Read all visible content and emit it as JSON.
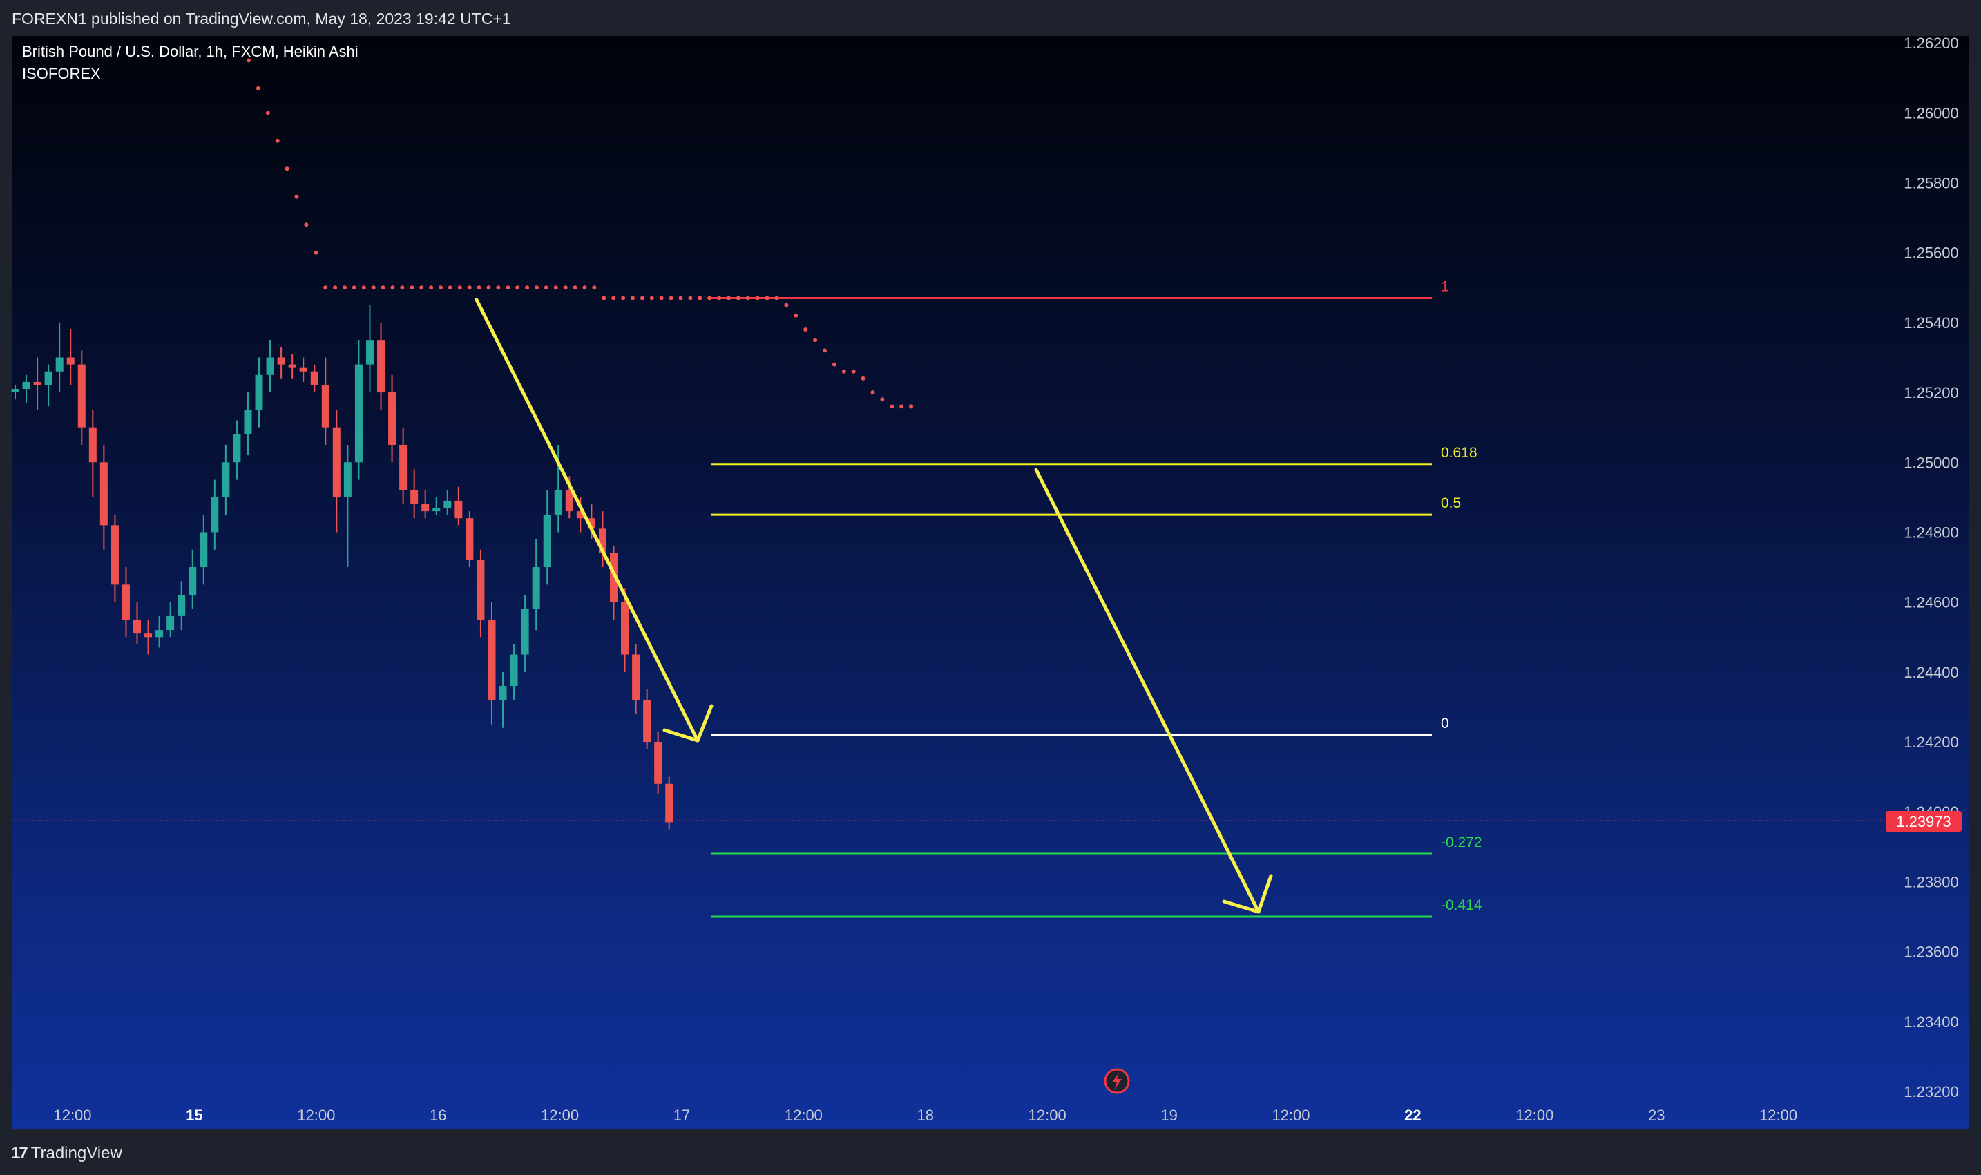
{
  "header": {
    "published": "FOREXN1 published on TradingView.com, May 18, 2023 19:42 UTC+1"
  },
  "chart": {
    "symbol_title": "British Pound / U.S. Dollar, 1h, FXCM, Heikin Ashi",
    "indicator": "ISOFOREX",
    "current_price": "1.23973",
    "colors": {
      "bull": "#26a69a",
      "bear": "#ef5350",
      "fib_red": "#f23645",
      "fib_yellow": "#f2f21f",
      "fib_white": "#ffffff",
      "fib_green": "#26d94a",
      "arrow": "#f7f04a",
      "price_tag": "#f23645"
    }
  },
  "footer": {
    "logo_text": "TradingView",
    "logo_mark": "17"
  },
  "chart_data": {
    "type": "candlestick",
    "ylim": [
      1.232,
      1.2622
    ],
    "y_ticks": [
      "1.26200",
      "1.26000",
      "1.25800",
      "1.25600",
      "1.25400",
      "1.25200",
      "1.25000",
      "1.24800",
      "1.24600",
      "1.24400",
      "1.24200",
      "1.24000",
      "1.23800",
      "1.23600",
      "1.23400",
      "1.23200"
    ],
    "x_ticks": [
      {
        "label": "12:00",
        "bold": false
      },
      {
        "label": "15",
        "bold": true
      },
      {
        "label": "12:00",
        "bold": false
      },
      {
        "label": "16",
        "bold": false
      },
      {
        "label": "12:00",
        "bold": false
      },
      {
        "label": "17",
        "bold": false
      },
      {
        "label": "12:00",
        "bold": false
      },
      {
        "label": "18",
        "bold": false
      },
      {
        "label": "12:00",
        "bold": false
      },
      {
        "label": "19",
        "bold": false
      },
      {
        "label": "12:00",
        "bold": false
      },
      {
        "label": "22",
        "bold": true
      },
      {
        "label": "12:00",
        "bold": false
      },
      {
        "label": "23",
        "bold": false
      },
      {
        "label": "12:00",
        "bold": false
      }
    ],
    "fib_levels": [
      {
        "label": "1",
        "price": 1.2547,
        "color": "#f23645"
      },
      {
        "label": "0.618",
        "price": 1.24995,
        "color": "#f2f21f"
      },
      {
        "label": "0.5",
        "price": 1.2485,
        "color": "#f2f21f"
      },
      {
        "label": "0",
        "price": 1.2422,
        "color": "#ffffff"
      },
      {
        "label": "-0.272",
        "price": 1.2388,
        "color": "#26d94a"
      },
      {
        "label": "-0.414",
        "price": 1.237,
        "color": "#26d94a"
      }
    ],
    "candles": [
      [
        1.252,
        1.2522,
        1.2518,
        1.2521
      ],
      [
        1.2521,
        1.2525,
        1.2517,
        1.2523
      ],
      [
        1.2523,
        1.253,
        1.2515,
        1.2522
      ],
      [
        1.2522,
        1.2528,
        1.2516,
        1.2526
      ],
      [
        1.2526,
        1.254,
        1.252,
        1.253
      ],
      [
        1.253,
        1.2538,
        1.2522,
        1.2528
      ],
      [
        1.2528,
        1.2532,
        1.2505,
        1.251
      ],
      [
        1.251,
        1.2515,
        1.249,
        1.25
      ],
      [
        1.25,
        1.2505,
        1.2475,
        1.2482
      ],
      [
        1.2482,
        1.2485,
        1.246,
        1.2465
      ],
      [
        1.2465,
        1.247,
        1.245,
        1.2455
      ],
      [
        1.2455,
        1.246,
        1.2448,
        1.2451
      ],
      [
        1.2451,
        1.2455,
        1.2445,
        1.245
      ],
      [
        1.245,
        1.2456,
        1.2447,
        1.2452
      ],
      [
        1.2452,
        1.246,
        1.245,
        1.2456
      ],
      [
        1.2456,
        1.2466,
        1.2452,
        1.2462
      ],
      [
        1.2462,
        1.2475,
        1.2458,
        1.247
      ],
      [
        1.247,
        1.2485,
        1.2465,
        1.248
      ],
      [
        1.248,
        1.2495,
        1.2475,
        1.249
      ],
      [
        1.249,
        1.2505,
        1.2485,
        1.25
      ],
      [
        1.25,
        1.2512,
        1.2495,
        1.2508
      ],
      [
        1.2508,
        1.252,
        1.2502,
        1.2515
      ],
      [
        1.2515,
        1.253,
        1.251,
        1.2525
      ],
      [
        1.2525,
        1.2535,
        1.252,
        1.253
      ],
      [
        1.253,
        1.2533,
        1.2524,
        1.2528
      ],
      [
        1.2528,
        1.2531,
        1.2524,
        1.2527
      ],
      [
        1.2527,
        1.253,
        1.2523,
        1.2526
      ],
      [
        1.2526,
        1.2528,
        1.252,
        1.2522
      ],
      [
        1.2522,
        1.253,
        1.2505,
        1.251
      ],
      [
        1.251,
        1.2515,
        1.248,
        1.249
      ],
      [
        1.249,
        1.2505,
        1.247,
        1.25
      ],
      [
        1.25,
        1.2535,
        1.2495,
        1.2528
      ],
      [
        1.2528,
        1.2545,
        1.252,
        1.2535
      ],
      [
        1.2535,
        1.254,
        1.2515,
        1.252
      ],
      [
        1.252,
        1.2525,
        1.25,
        1.2505
      ],
      [
        1.2505,
        1.251,
        1.2488,
        1.2492
      ],
      [
        1.2492,
        1.2498,
        1.2484,
        1.2488
      ],
      [
        1.2488,
        1.2492,
        1.2484,
        1.2486
      ],
      [
        1.2486,
        1.249,
        1.2485,
        1.2487
      ],
      [
        1.2487,
        1.2492,
        1.2485,
        1.2489
      ],
      [
        1.2489,
        1.2493,
        1.2482,
        1.2484
      ],
      [
        1.2484,
        1.2486,
        1.247,
        1.2472
      ],
      [
        1.2472,
        1.2475,
        1.245,
        1.2455
      ],
      [
        1.2455,
        1.246,
        1.2425,
        1.2432
      ],
      [
        1.2432,
        1.244,
        1.2424,
        1.2436
      ],
      [
        1.2436,
        1.2448,
        1.2432,
        1.2445
      ],
      [
        1.2445,
        1.2462,
        1.244,
        1.2458
      ],
      [
        1.2458,
        1.2478,
        1.2452,
        1.247
      ],
      [
        1.247,
        1.2492,
        1.2465,
        1.2485
      ],
      [
        1.2485,
        1.2505,
        1.248,
        1.2492
      ],
      [
        1.2492,
        1.2496,
        1.2484,
        1.2486
      ],
      [
        1.2486,
        1.249,
        1.248,
        1.2484
      ],
      [
        1.2484,
        1.2488,
        1.2478,
        1.2481
      ],
      [
        1.2481,
        1.2486,
        1.247,
        1.2474
      ],
      [
        1.2474,
        1.2476,
        1.2455,
        1.246
      ],
      [
        1.246,
        1.2464,
        1.244,
        1.2445
      ],
      [
        1.2445,
        1.2448,
        1.2428,
        1.2432
      ],
      [
        1.2432,
        1.2435,
        1.2418,
        1.242
      ],
      [
        1.242,
        1.2423,
        1.2405,
        1.2408
      ],
      [
        1.2408,
        1.241,
        1.2395,
        1.2397
      ]
    ],
    "sar_dots": [
      [
        1.2615
      ],
      [
        1.2607
      ],
      [
        1.26
      ],
      [
        1.2592
      ],
      [
        1.2584
      ],
      [
        1.2576
      ],
      [
        1.2568
      ],
      [
        1.256
      ],
      [
        1.255
      ],
      [
        1.255
      ],
      [
        1.255
      ],
      [
        1.255
      ],
      [
        1.255
      ],
      [
        1.255
      ],
      [
        1.255
      ],
      [
        1.255
      ],
      [
        1.255
      ],
      [
        1.255
      ],
      [
        1.255
      ],
      [
        1.255
      ],
      [
        1.255
      ],
      [
        1.255
      ],
      [
        1.255
      ],
      [
        1.255
      ],
      [
        1.255
      ],
      [
        1.255
      ],
      [
        1.255
      ],
      [
        1.255
      ],
      [
        1.255
      ],
      [
        1.255
      ],
      [
        1.255
      ],
      [
        1.255
      ],
      [
        1.255
      ],
      [
        1.255
      ],
      [
        1.255
      ],
      [
        1.255
      ],
      [
        1.255
      ],
      [
        1.2547
      ],
      [
        1.2547
      ],
      [
        1.2547
      ],
      [
        1.2547
      ],
      [
        1.2547
      ],
      [
        1.2547
      ],
      [
        1.2547
      ],
      [
        1.2547
      ],
      [
        1.2547
      ],
      [
        1.2547
      ],
      [
        1.2547
      ],
      [
        1.2547
      ],
      [
        1.2547
      ],
      [
        1.2547
      ],
      [
        1.2547
      ],
      [
        1.2547
      ],
      [
        1.2547
      ],
      [
        1.2547
      ],
      [
        1.2547
      ],
      [
        1.2545
      ],
      [
        1.2542
      ],
      [
        1.2538
      ],
      [
        1.2535
      ],
      [
        1.2532
      ],
      [
        1.2528
      ],
      [
        1.2526
      ],
      [
        1.2526
      ],
      [
        1.2524
      ],
      [
        1.252
      ],
      [
        1.2518
      ],
      [
        1.2516
      ],
      [
        1.2516
      ],
      [
        1.2516
      ]
    ]
  }
}
